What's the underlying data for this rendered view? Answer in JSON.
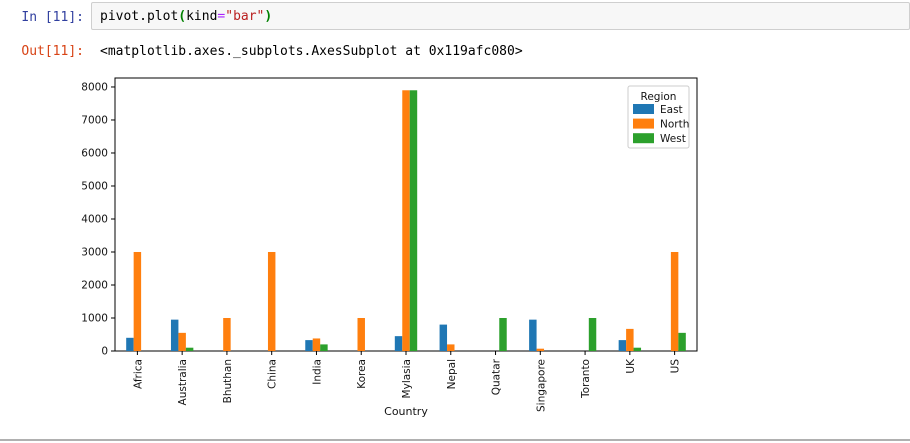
{
  "notebook": {
    "input_prompt": "In [11]:",
    "output_prompt": "Out[11]:",
    "code_tokens": [
      {
        "text": "pivot.plot",
        "color": "#000000",
        "bold": false
      },
      {
        "text": "(",
        "color": "#008000",
        "bold": true
      },
      {
        "text": "kind",
        "color": "#000000",
        "bold": false
      },
      {
        "text": "=",
        "color": "#AA22FF",
        "bold": false
      },
      {
        "text": "\"bar\"",
        "color": "#BA2121",
        "bold": false
      },
      {
        "text": ")",
        "color": "#008000",
        "bold": true
      }
    ],
    "output_text": "<matplotlib.axes._subplots.AxesSubplot at 0x119afc080>"
  },
  "chart_data": {
    "type": "bar",
    "title": "",
    "xlabel": "Country",
    "ylabel": "",
    "categories": [
      "Africa",
      "Australia",
      "Bhuthan",
      "China",
      "India",
      "Korea",
      "Mylasia",
      "Nepal",
      "Quatar",
      "Singapore",
      "Toranto",
      "UK",
      "US"
    ],
    "series": [
      {
        "name": "East",
        "color": "#1f77b4",
        "values": [
          400,
          950,
          0,
          0,
          330,
          0,
          450,
          800,
          0,
          950,
          0,
          330,
          0
        ]
      },
      {
        "name": "North",
        "color": "#ff7f0e",
        "values": [
          3000,
          550,
          1000,
          3000,
          380,
          1000,
          7900,
          200,
          0,
          70,
          0,
          670,
          3000
        ]
      },
      {
        "name": "West",
        "color": "#2ca02c",
        "values": [
          0,
          100,
          0,
          0,
          200,
          0,
          7900,
          0,
          1000,
          0,
          1000,
          100,
          550
        ]
      }
    ],
    "legend_title": "Region",
    "legend_position": "upper right",
    "ylim": [
      0,
      8272
    ],
    "yticks": [
      0,
      1000,
      2000,
      3000,
      4000,
      5000,
      6000,
      7000,
      8000
    ],
    "grid": false
  },
  "colors": {
    "in_prompt": "#303F9F",
    "out_prompt": "#D84315",
    "input_bg": "#f7f7f7",
    "input_border": "#cfcfcf",
    "divider": "#b0b0b0"
  }
}
